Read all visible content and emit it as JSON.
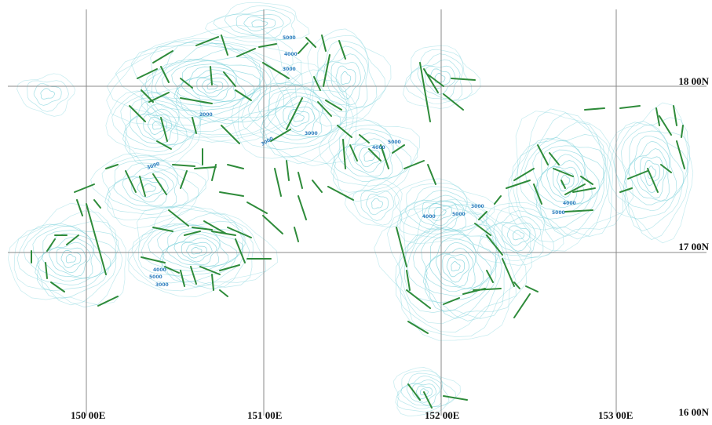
{
  "map": {
    "longitude_labels": [
      "150 00E",
      "151 00E",
      "152 00E",
      "153 00E"
    ],
    "latitude_labels": [
      "18 00N",
      "17 00N",
      "16 00N"
    ],
    "contour_labels": [
      "5000",
      "4000",
      "3000",
      "2000",
      "3000",
      "3000",
      "4000",
      "5000",
      "3000",
      "4000",
      "5000",
      "3000",
      "4000",
      "5000",
      "3000",
      "4000",
      "5000"
    ],
    "colors": {
      "background": "#ffffff",
      "grid": "#8a8a8a",
      "contour": "#7fd3dc",
      "lineament": "#2e8b3a",
      "label_text": "#111111",
      "contour_label": "#2f7fbf"
    }
  }
}
